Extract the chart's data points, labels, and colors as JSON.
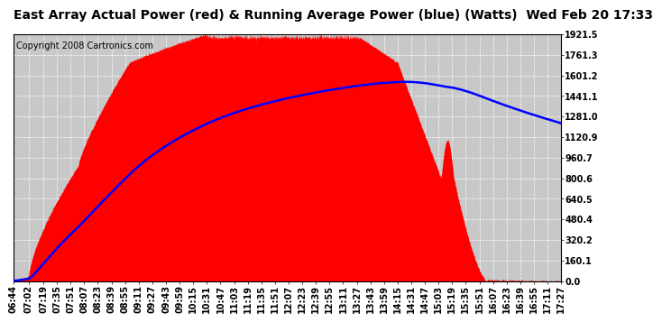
{
  "title": "East Array Actual Power (red) & Running Average Power (blue) (Watts)  Wed Feb 20 17:33",
  "copyright": "Copyright 2008 Cartronics.com",
  "ylabel_ticks": [
    0.0,
    160.1,
    320.2,
    480.4,
    640.5,
    800.6,
    960.7,
    1120.9,
    1281.0,
    1441.1,
    1601.2,
    1761.3,
    1921.5
  ],
  "ymax": 1921.5,
  "ymin": 0.0,
  "fill_color": "#FF0000",
  "avg_color": "#0000FF",
  "bg_color": "#FFFFFF",
  "plot_bg_color": "#C8C8C8",
  "grid_color": "#FFFFFF",
  "title_fontsize": 10,
  "copyright_fontsize": 7,
  "tick_fontsize": 7,
  "x_tick_labels": [
    "06:44",
    "07:02",
    "07:19",
    "07:35",
    "07:51",
    "08:07",
    "08:23",
    "08:39",
    "08:55",
    "09:11",
    "09:27",
    "09:43",
    "09:59",
    "10:15",
    "10:31",
    "10:47",
    "11:03",
    "11:19",
    "11:35",
    "11:51",
    "12:07",
    "12:23",
    "12:39",
    "12:55",
    "13:11",
    "13:27",
    "13:43",
    "13:59",
    "14:15",
    "14:31",
    "14:47",
    "15:03",
    "15:19",
    "15:35",
    "15:51",
    "16:07",
    "16:23",
    "16:39",
    "16:55",
    "17:11",
    "17:27"
  ]
}
